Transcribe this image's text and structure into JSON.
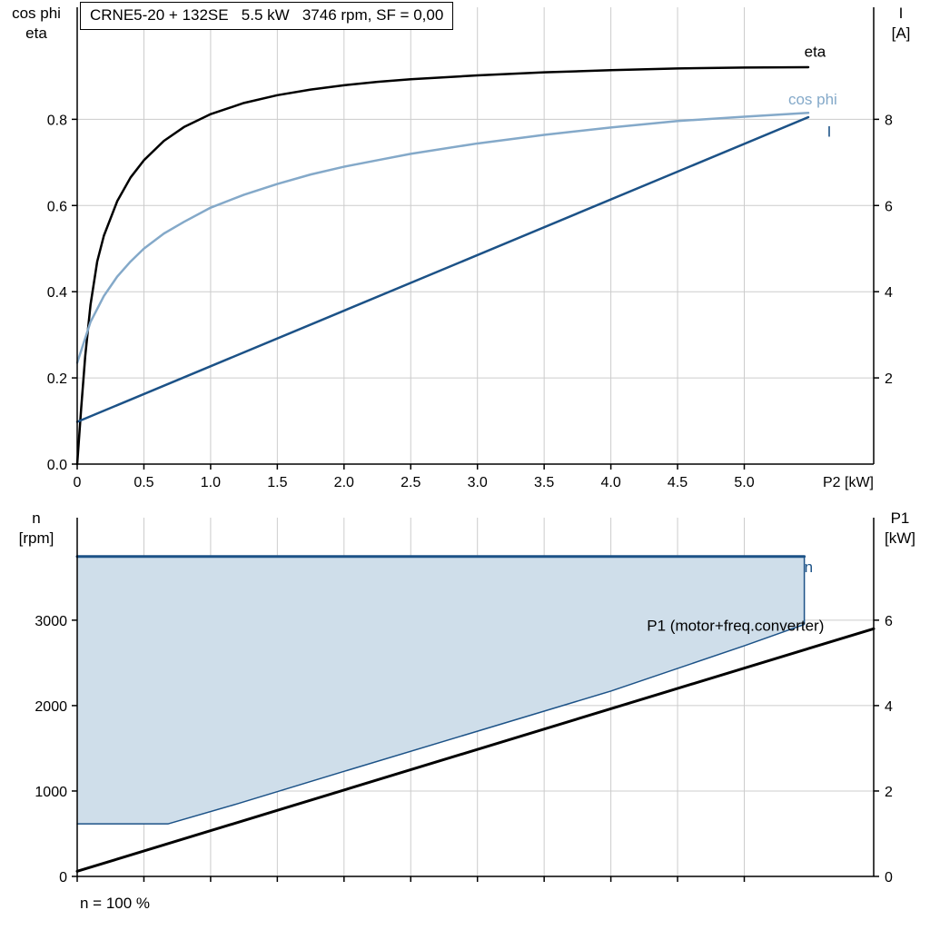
{
  "title_box": {
    "text": "CRNE5-20 + 132SE   5.5 kW   3746 rpm, SF = 0,00"
  },
  "footer": {
    "text": "n = 100 %"
  },
  "axis_corner_labels": {
    "top_left": [
      "cos phi",
      "eta"
    ],
    "top_right": [
      "I",
      "[A]"
    ],
    "bottom_left": [
      "n",
      "[rpm]"
    ],
    "bottom_right": [
      "P1",
      "[kW]"
    ]
  },
  "colors": {
    "black": "#000000",
    "dark_blue": "#1c5287",
    "light_blue": "#84a9c9",
    "fill_blue": "#cfdeea",
    "grid": "#cccccc",
    "axis": "#000000"
  },
  "chart_data": [
    {
      "type": "line",
      "name": "motor-performance-curves",
      "x_axis": {
        "label": "P2 [kW]",
        "min": 0,
        "max": 5.97,
        "ticks": [
          0,
          0.5,
          1,
          1.5,
          2,
          2.5,
          3,
          3.5,
          4,
          4.5,
          5
        ],
        "tick_labels": [
          "0",
          "0.5",
          "1.0",
          "1.5",
          "2.0",
          "2.5",
          "3.0",
          "3.5",
          "4.0",
          "4.5",
          "5.0"
        ]
      },
      "y_axis_left": {
        "label": "cos phi / eta",
        "min": 0,
        "max": 1.06,
        "ticks": [
          0,
          0.2,
          0.4,
          0.6,
          0.8
        ],
        "tick_labels": [
          "0.0",
          "0.2",
          "0.4",
          "0.6",
          "0.8"
        ]
      },
      "y_axis_right": {
        "label": "I [A]",
        "min": 0,
        "max": 10.6,
        "ticks": [
          2,
          4,
          6,
          8
        ],
        "tick_labels": [
          "2",
          "4",
          "6",
          "8"
        ]
      },
      "series": [
        {
          "name": "eta",
          "axis": "left",
          "color": "black",
          "width": 2.5,
          "points": [
            [
              0,
              0
            ],
            [
              0.03,
              0.13
            ],
            [
              0.06,
              0.25
            ],
            [
              0.1,
              0.37
            ],
            [
              0.15,
              0.47
            ],
            [
              0.2,
              0.53
            ],
            [
              0.3,
              0.61
            ],
            [
              0.4,
              0.665
            ],
            [
              0.5,
              0.705
            ],
            [
              0.65,
              0.75
            ],
            [
              0.8,
              0.782
            ],
            [
              1.0,
              0.812
            ],
            [
              1.25,
              0.838
            ],
            [
              1.5,
              0.856
            ],
            [
              1.75,
              0.869
            ],
            [
              2.0,
              0.879
            ],
            [
              2.25,
              0.887
            ],
            [
              2.5,
              0.893
            ],
            [
              3.0,
              0.902
            ],
            [
              3.5,
              0.909
            ],
            [
              4.0,
              0.914
            ],
            [
              4.5,
              0.918
            ],
            [
              5.0,
              0.92
            ],
            [
              5.48,
              0.921
            ]
          ]
        },
        {
          "name": "cos phi",
          "axis": "left",
          "color": "light_blue",
          "width": 2.5,
          "points": [
            [
              0,
              0.235
            ],
            [
              0.1,
              0.33
            ],
            [
              0.2,
              0.39
            ],
            [
              0.3,
              0.435
            ],
            [
              0.4,
              0.47
            ],
            [
              0.5,
              0.5
            ],
            [
              0.65,
              0.535
            ],
            [
              0.8,
              0.562
            ],
            [
              1.0,
              0.595
            ],
            [
              1.25,
              0.625
            ],
            [
              1.5,
              0.65
            ],
            [
              1.75,
              0.672
            ],
            [
              2.0,
              0.69
            ],
            [
              2.25,
              0.705
            ],
            [
              2.5,
              0.72
            ],
            [
              3.0,
              0.744
            ],
            [
              3.5,
              0.764
            ],
            [
              4.0,
              0.781
            ],
            [
              4.5,
              0.796
            ],
            [
              5.0,
              0.806
            ],
            [
              5.48,
              0.815
            ]
          ]
        },
        {
          "name": "I",
          "axis": "right",
          "color": "dark_blue",
          "width": 2.5,
          "points": [
            [
              0,
              0.98
            ],
            [
              5.48,
              8.05
            ]
          ]
        }
      ],
      "annotations": [
        {
          "text": "eta",
          "color": "black",
          "axis": "left",
          "x": 5.45,
          "y": 0.945,
          "anchor": "start"
        },
        {
          "text": "cos phi",
          "color": "light_blue",
          "axis": "left",
          "x": 5.33,
          "y": 0.835,
          "anchor": "start"
        },
        {
          "text": "I",
          "color": "dark_blue",
          "axis": "right",
          "x": 5.62,
          "y": 7.6,
          "anchor": "start"
        }
      ]
    },
    {
      "type": "line",
      "name": "speed-and-input-power",
      "x_axis": {
        "label": "",
        "min": 0,
        "max": 5.97,
        "ticks": [
          0,
          0.5,
          1,
          1.5,
          2,
          2.5,
          3,
          3.5,
          4,
          4.5,
          5
        ],
        "tick_labels": []
      },
      "y_axis_left": {
        "label": "n [rpm]",
        "min": 0,
        "max": 4200,
        "ticks": [
          0,
          1000,
          2000,
          3000
        ],
        "tick_labels": [
          "0",
          "1000",
          "2000",
          "3000"
        ]
      },
      "y_axis_right": {
        "label": "P1 [kW]",
        "min": 0,
        "max": 8.4,
        "ticks": [
          0,
          2,
          4,
          6
        ],
        "tick_labels": [
          "0",
          "2",
          "4",
          "6"
        ]
      },
      "series": [
        {
          "name": "speed range area",
          "type": "area",
          "axis": "left",
          "color": "fill_blue",
          "points": [
            [
              0,
              615
            ],
            [
              0.68,
              615
            ],
            [
              1.2,
              850
            ],
            [
              2,
              1230
            ],
            [
              3,
              1700
            ],
            [
              4,
              2170
            ],
            [
              5,
              2700
            ],
            [
              5.45,
              2950
            ],
            [
              5.45,
              3746
            ],
            [
              0,
              3746
            ]
          ]
        },
        {
          "name": "speed range boundary",
          "axis": "left",
          "color": "dark_blue",
          "width": 1.5,
          "points": [
            [
              0,
              615
            ],
            [
              0.68,
              615
            ],
            [
              1.2,
              850
            ],
            [
              2,
              1230
            ],
            [
              3,
              1700
            ],
            [
              4,
              2170
            ],
            [
              5,
              2700
            ],
            [
              5.45,
              2950
            ],
            [
              5.45,
              3746
            ]
          ]
        },
        {
          "name": "n",
          "axis": "left",
          "color": "dark_blue",
          "width": 3,
          "points": [
            [
              0,
              3746
            ],
            [
              5.45,
              3746
            ]
          ]
        },
        {
          "name": "P1 (motor+freq.converter)",
          "axis": "right",
          "color": "black",
          "width": 3,
          "points": [
            [
              0,
              0.12
            ],
            [
              5.97,
              5.8
            ]
          ]
        }
      ],
      "annotations": [
        {
          "text": "n",
          "color": "dark_blue",
          "axis": "left",
          "x": 5.45,
          "y": 3560,
          "anchor": "start"
        },
        {
          "text": "P1 (motor+freq.converter)",
          "color": "black",
          "axis": "right",
          "x": 4.27,
          "y": 5.75,
          "anchor": "start"
        }
      ]
    }
  ]
}
